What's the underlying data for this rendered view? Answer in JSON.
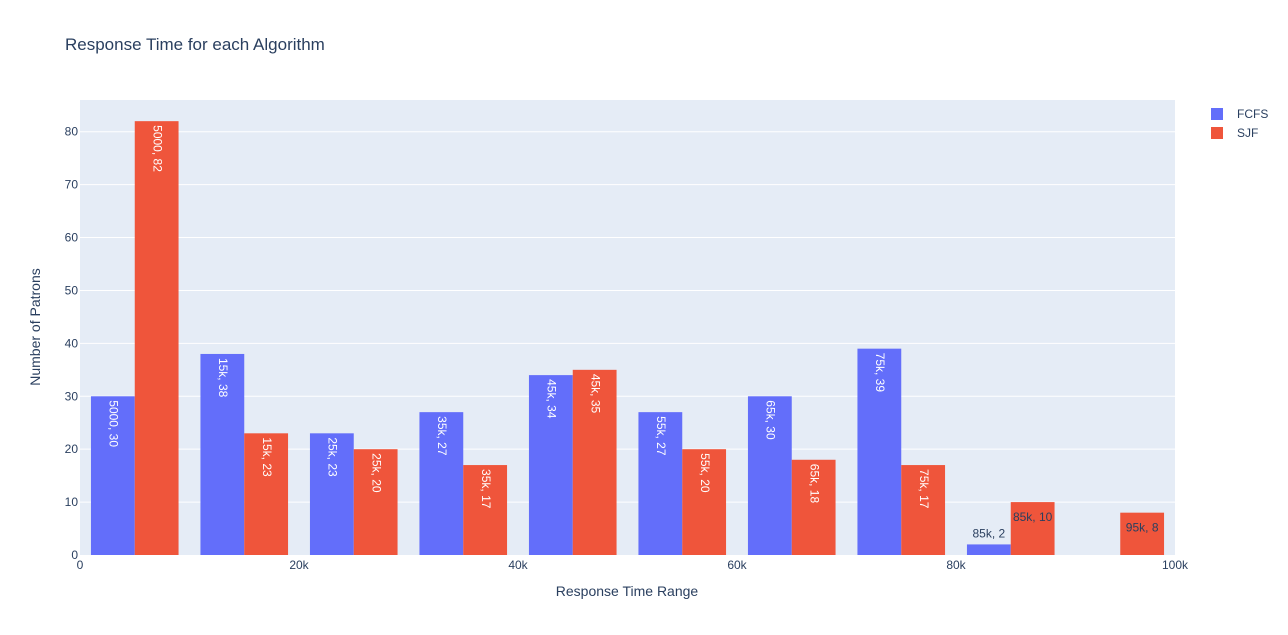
{
  "chart_data": {
    "type": "bar",
    "title": "Response Time for each Algorithm",
    "xlabel": "Response Time Range",
    "ylabel": "Number of Patrons",
    "xlim": [
      0,
      100000
    ],
    "ylim": [
      0,
      86
    ],
    "x_ticks": [
      {
        "value": 0,
        "label": "0"
      },
      {
        "value": 20000,
        "label": "20k"
      },
      {
        "value": 40000,
        "label": "40k"
      },
      {
        "value": 60000,
        "label": "60k"
      },
      {
        "value": 80000,
        "label": "80k"
      },
      {
        "value": 100000,
        "label": "100k"
      }
    ],
    "y_ticks": [
      0,
      10,
      20,
      30,
      40,
      50,
      60,
      70,
      80
    ],
    "categories": [
      5000,
      15000,
      25000,
      35000,
      45000,
      55000,
      65000,
      75000,
      85000,
      95000
    ],
    "bin_width": 10000,
    "grid": true,
    "legend_position": "top-right",
    "plot_bg": "#e5ecf6",
    "series": [
      {
        "name": "FCFS",
        "color": "#636efa",
        "values": [
          30,
          38,
          23,
          27,
          34,
          27,
          30,
          39,
          2,
          0
        ],
        "labels": [
          "5000,  30",
          "15k,  38",
          "25k,  23",
          "35k,  27",
          "45k,  34",
          "55k,  27",
          "65k,  30",
          "75k,  39",
          "85k,  2",
          ""
        ]
      },
      {
        "name": "SJF",
        "color": "#ef553b",
        "values": [
          82,
          23,
          20,
          17,
          35,
          20,
          18,
          17,
          10,
          8
        ],
        "labels": [
          "5000,  82",
          "15k,  23",
          "25k,  20",
          "35k,  17",
          "45k,  35",
          "55k,  20",
          "65k,  18",
          "75k,  17",
          "85k,  10",
          "95k,  8"
        ]
      }
    ]
  }
}
